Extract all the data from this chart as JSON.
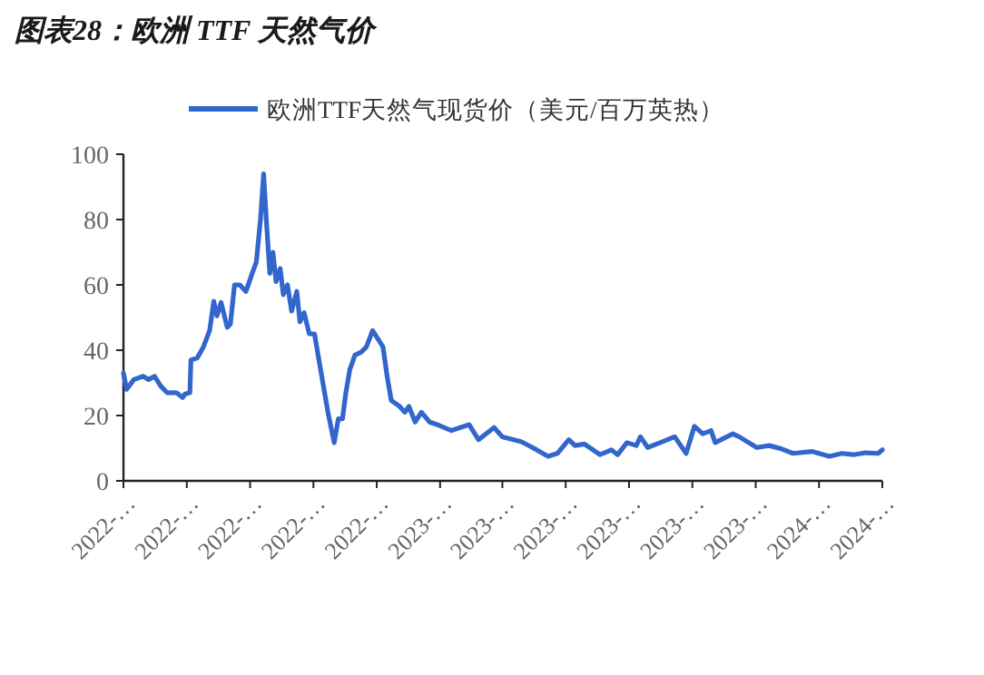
{
  "chart_data": {
    "type": "line",
    "title": "图表28：欧洲 TTF 天然气价",
    "legend": "top",
    "marker": "none",
    "line_style": "solid",
    "grid": false,
    "xlim": [
      "2022-04-10",
      "2024-04-10"
    ],
    "xticks": [
      {
        "value": "2022-04-10",
        "label": "2022-…"
      },
      {
        "value": "2022-06-10",
        "label": "2022-…"
      },
      {
        "value": "2022-08-10",
        "label": "2022-…"
      },
      {
        "value": "2022-10-10",
        "label": "2022-…"
      },
      {
        "value": "2022-12-10",
        "label": "2022-…"
      },
      {
        "value": "2023-02-09",
        "label": "2023-…"
      },
      {
        "value": "2023-04-10",
        "label": "2023-…"
      },
      {
        "value": "2023-06-10",
        "label": "2023-…"
      },
      {
        "value": "2023-08-10",
        "label": "2023-…"
      },
      {
        "value": "2023-10-10",
        "label": "2023-…"
      },
      {
        "value": "2023-12-10",
        "label": "2023-…"
      },
      {
        "value": "2024-02-09",
        "label": "2024-…"
      },
      {
        "value": "2024-04-10",
        "label": "2024-…"
      }
    ],
    "ylim": [
      0,
      100
    ],
    "yticks": [
      0,
      20,
      40,
      60,
      80,
      100
    ],
    "series": [
      {
        "name": "欧洲TTF天然气现货价（美元/百万英热）",
        "color": "#3366cc",
        "x": [
          "2022-04-10",
          "2022-04-13",
          "2022-04-20",
          "2022-04-29",
          "2022-05-04",
          "2022-05-10",
          "2022-05-16",
          "2022-05-22",
          "2022-05-31",
          "2022-06-06",
          "2022-06-08",
          "2022-06-13",
          "2022-06-14",
          "2022-06-20",
          "2022-06-26",
          "2022-07-02",
          "2022-07-06",
          "2022-07-09",
          "2022-07-13",
          "2022-07-19",
          "2022-07-22",
          "2022-07-26",
          "2022-07-31",
          "2022-08-06",
          "2022-08-12",
          "2022-08-16",
          "2022-08-20",
          "2022-08-23",
          "2022-08-26",
          "2022-08-29",
          "2022-09-01",
          "2022-09-04",
          "2022-09-08",
          "2022-09-11",
          "2022-09-15",
          "2022-09-19",
          "2022-09-24",
          "2022-09-27",
          "2022-10-01",
          "2022-10-06",
          "2022-10-11",
          "2022-10-18",
          "2022-10-24",
          "2022-10-30",
          "2022-11-03",
          "2022-11-07",
          "2022-11-10",
          "2022-11-14",
          "2022-11-19",
          "2022-11-25",
          "2022-11-30",
          "2022-12-06",
          "2022-12-12",
          "2022-12-16",
          "2022-12-20",
          "2022-12-24",
          "2023-01-01",
          "2023-01-06",
          "2023-01-10",
          "2023-01-16",
          "2023-01-22",
          "2023-01-30",
          "2023-02-08",
          "2023-02-20",
          "2023-03-09",
          "2023-03-18",
          "2023-04-02",
          "2023-04-10",
          "2023-04-28",
          "2023-05-09",
          "2023-05-24",
          "2023-06-02",
          "2023-06-13",
          "2023-06-19",
          "2023-06-28",
          "2023-07-13",
          "2023-07-24",
          "2023-07-30",
          "2023-08-08",
          "2023-08-17",
          "2023-08-21",
          "2023-08-28",
          "2023-09-09",
          "2023-09-23",
          "2023-10-04",
          "2023-10-12",
          "2023-10-20",
          "2023-10-28",
          "2023-11-01",
          "2023-11-18",
          "2023-11-24",
          "2023-12-11",
          "2023-12-23",
          "2024-01-03",
          "2024-01-15",
          "2024-02-02",
          "2024-02-19",
          "2024-03-02",
          "2024-03-13",
          "2024-03-25",
          "2024-04-06",
          "2024-04-10"
        ],
        "values": [
          33,
          28,
          31,
          32,
          31,
          32,
          29,
          27,
          27,
          25.5,
          26.5,
          27,
          37,
          37.6,
          41,
          46,
          55,
          50.5,
          54.6,
          47,
          48,
          60,
          60,
          58,
          63.5,
          67,
          80,
          94,
          78,
          63.5,
          70,
          61,
          65,
          57,
          60,
          52,
          58,
          48.7,
          51.5,
          45,
          45,
          32,
          21,
          11.7,
          19,
          19,
          26.5,
          34,
          38.5,
          39.4,
          41,
          46,
          43,
          41,
          32,
          24.6,
          22.8,
          21,
          22.8,
          18,
          21,
          18,
          17,
          15.4,
          17.2,
          12.6,
          16.3,
          13.5,
          12,
          10.2,
          7.5,
          8.4,
          12.6,
          10.8,
          11.3,
          8,
          9.5,
          8,
          11.7,
          10.8,
          13.5,
          10.2,
          11.7,
          13.5,
          8.4,
          16.7,
          14.4,
          15.4,
          11.7,
          14.4,
          13.5,
          10.2,
          10.8,
          9.9,
          8.4,
          9,
          7.5,
          8.4,
          8,
          8.6,
          8.4,
          9.5
        ]
      }
    ]
  }
}
